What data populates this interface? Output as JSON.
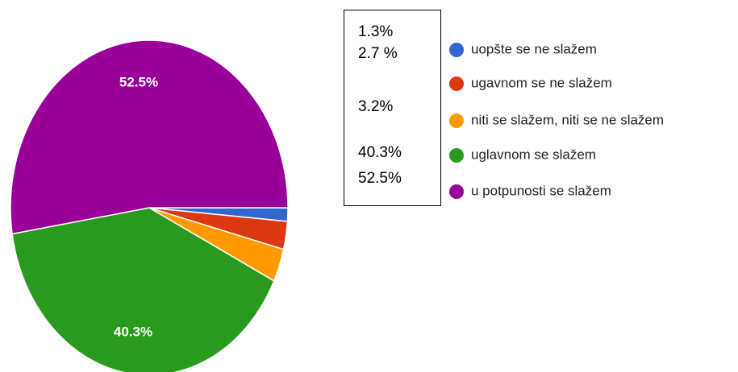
{
  "chart_data": {
    "type": "pie",
    "categories": [
      "uopšte se ne slažem",
      "ugavnom se ne slažem",
      "niti se slažem, niti se ne slažem",
      "uglavnom se slažem",
      "u potpunosti se slažem"
    ],
    "values": [
      1.3,
      2.7,
      3.2,
      40.3,
      52.5
    ],
    "value_labels": [
      "1.3%",
      "2.7 %",
      "3.2%",
      "40.3%",
      "52.5%"
    ],
    "colors": [
      "#3366cc",
      "#dc3912",
      "#ff9900",
      "#2a9a1e",
      "#990099"
    ],
    "legend": "right"
  }
}
